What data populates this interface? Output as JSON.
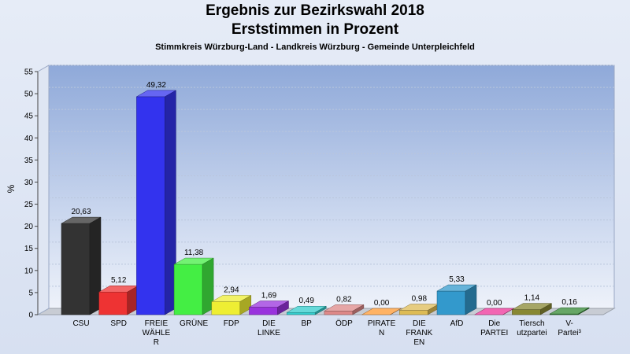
{
  "chart_data": {
    "type": "bar",
    "title": "Ergebnis zur Bezirkswahl 2018",
    "subtitle": "Erststimmen in Prozent",
    "subsubtitle": "Stimmkreis Würzburg-Land - Landkreis Würzburg - Gemeinde Unterpleichfeld",
    "ylabel": "%",
    "ylim": [
      0,
      55
    ],
    "yticks": [
      0,
      5,
      10,
      15,
      20,
      25,
      30,
      35,
      40,
      45,
      50,
      55
    ],
    "grid": true,
    "categories": [
      [
        "CSU"
      ],
      [
        "SPD"
      ],
      [
        "FREIE",
        "WÄHLE",
        "R"
      ],
      [
        "GRÜNE"
      ],
      [
        "FDP"
      ],
      [
        "DIE",
        "LINKE"
      ],
      [
        "BP"
      ],
      [
        "ÖDP"
      ],
      [
        "PIRATE",
        "N"
      ],
      [
        "DIE",
        "FRANK",
        "EN"
      ],
      [
        "AfD"
      ],
      [
        "Die",
        "PARTEI"
      ],
      [
        "Tiersch",
        "utzpartei"
      ],
      [
        "V-",
        "Partei³"
      ]
    ],
    "values": [
      20.63,
      5.12,
      49.32,
      11.38,
      2.94,
      1.69,
      0.49,
      0.82,
      0.0,
      0.98,
      5.33,
      0.0,
      1.14,
      0.16
    ],
    "value_labels": [
      "20,63",
      "5,12",
      "49,32",
      "11,38",
      "2,94",
      "1,69",
      "0,49",
      "0,82",
      "0,00",
      "0,98",
      "5,33",
      "0,00",
      "1,14",
      "0,16"
    ],
    "colors": [
      "#333333",
      "#ee3333",
      "#3333ee",
      "#44ee44",
      "#eeee33",
      "#9933dd",
      "#33cccc",
      "#dd8888",
      "#ff9933",
      "#ddbb55",
      "#3399cc",
      "#ee3399",
      "#888833",
      "#338833"
    ]
  }
}
